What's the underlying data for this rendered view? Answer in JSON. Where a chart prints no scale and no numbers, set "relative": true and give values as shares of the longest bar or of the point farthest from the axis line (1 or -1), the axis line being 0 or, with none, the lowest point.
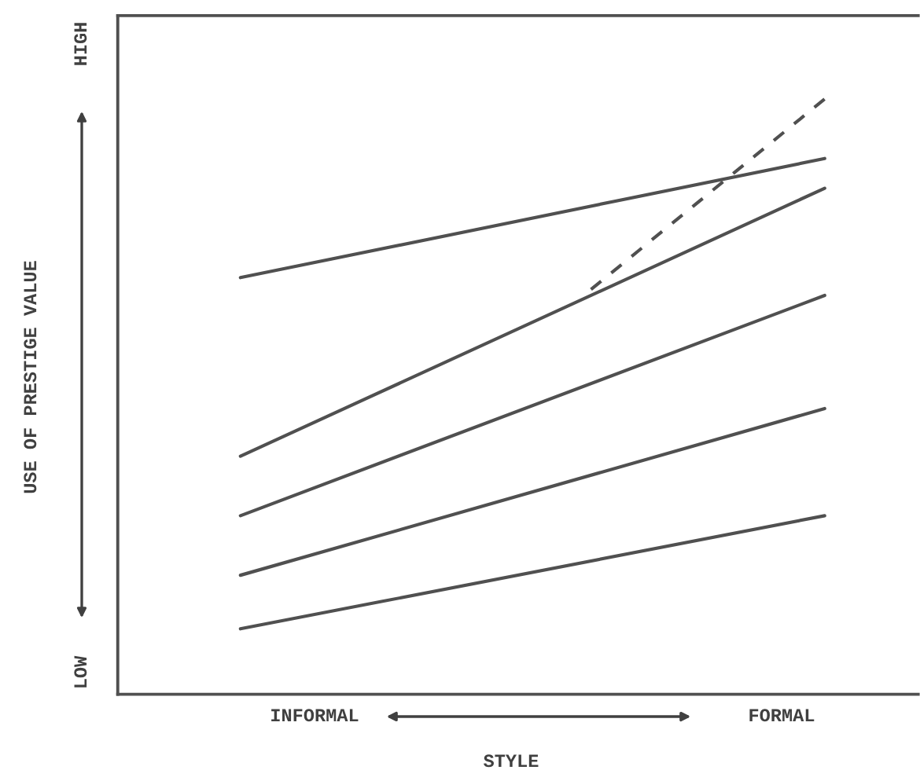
{
  "chart_data": {
    "type": "line",
    "relative": true,
    "xlabel": "STYLE",
    "ylabel": "USE OF PRESTIGE VALUE",
    "categories": [
      null,
      null,
      null,
      null,
      null,
      null
    ],
    "series": [
      {
        "color": "#505050",
        "values": [
          0.7,
          null,
          null,
          null,
          null,
          0.9
        ]
      },
      {
        "color": "#505050",
        "values": [
          0.4,
          null,
          null,
          null,
          null,
          0.85
        ]
      },
      {
        "color": "#505050",
        "values": [
          null,
          null,
          null,
          0.68,
          null,
          1.0
        ],
        "line_style": "dashed"
      },
      {
        "color": "#505050",
        "values": [
          0.3,
          null,
          null,
          null,
          null,
          0.67
        ]
      },
      {
        "color": "#505050",
        "values": [
          0.2,
          null,
          null,
          null,
          null,
          0.48
        ]
      },
      {
        "color": "#505050",
        "values": [
          0.11,
          null,
          null,
          null,
          null,
          0.3
        ]
      }
    ],
    "annotations": [
      "INFORMAL",
      "FORMAL",
      "LOW",
      "HIGH"
    ],
    "grid": false,
    "line_style": "solid",
    "marker": "none"
  }
}
